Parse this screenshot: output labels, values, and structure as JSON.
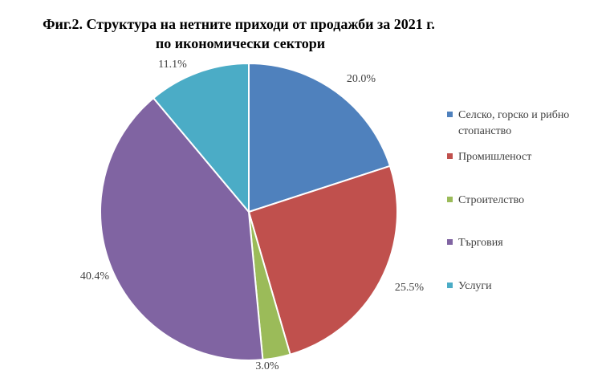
{
  "chart_data": {
    "type": "pie",
    "title_lines": [
      "Фиг.2. Структура на нетните приходи от продажби за 2021 г.",
      "по икономически сектори"
    ],
    "categories": [
      "Селско, горско и рибно стопанство",
      "Промишленост",
      "Строителство",
      "Търговия",
      "Услуги"
    ],
    "values": [
      20.0,
      25.5,
      3.0,
      40.4,
      11.1
    ],
    "data_labels": [
      "20.0%",
      "25.5%",
      "3.0%",
      "40.4%",
      "11.1%"
    ],
    "colors": [
      "#4F81BD",
      "#C0504D",
      "#9BBB59",
      "#8064A2",
      "#4BACC6"
    ],
    "legend_position": "right"
  }
}
